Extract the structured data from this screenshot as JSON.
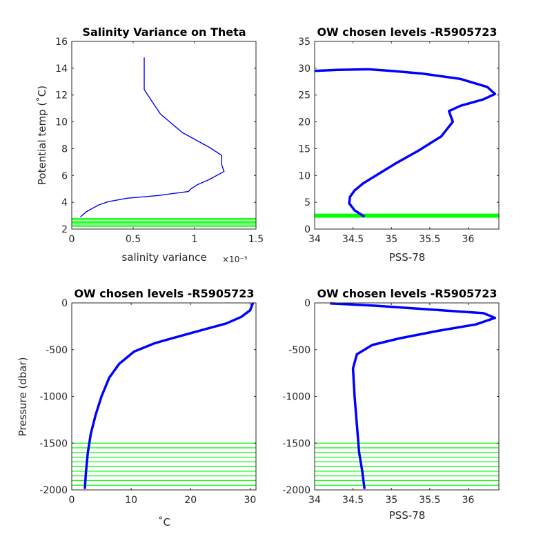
{
  "colors": {
    "profile": "#0000ff",
    "levels": "#00ff00",
    "axes": "#262626"
  },
  "chart_data": [
    {
      "type": "line",
      "title": "Salinity Variance on Theta",
      "xlabel": "salinity variance",
      "ylabel": "Potential temp (˚C)",
      "x_exponent_label": "×10⁻³",
      "xlim": [
        0,
        1.5
      ],
      "ylim": [
        2,
        16
      ],
      "xticks": [
        0,
        0.5,
        1,
        1.5
      ],
      "xtick_labels": [
        "0",
        "0.5",
        "1",
        "1.5"
      ],
      "yticks": [
        2,
        4,
        6,
        8,
        10,
        12,
        14,
        16
      ],
      "ytick_labels": [
        "2",
        "4",
        "6",
        "8",
        "10",
        "12",
        "14",
        "16"
      ],
      "series": [
        {
          "x": [
            0.59,
            0.59,
            0.72,
            0.9,
            1.12,
            1.22,
            1.22,
            1.24,
            1.12,
            1.02,
            0.97,
            0.95,
            0.7,
            0.45,
            0.3,
            0.22,
            0.18,
            0.12,
            0.07
          ],
          "y": [
            14.8,
            12.4,
            10.6,
            9.2,
            8.1,
            7.5,
            6.8,
            6.3,
            5.7,
            5.3,
            5.0,
            4.8,
            4.5,
            4.3,
            4.05,
            3.8,
            3.6,
            3.3,
            2.9
          ]
        }
      ],
      "chosen_levels": [
        2.2,
        2.3,
        2.4,
        2.5,
        2.6,
        2.7,
        2.8
      ]
    },
    {
      "type": "line",
      "title": "OW chosen levels -R5905723",
      "xlabel": "PSS-78",
      "ylabel": "",
      "xlim": [
        34,
        36.4
      ],
      "ylim": [
        0,
        35
      ],
      "xticks": [
        34,
        34.5,
        35,
        35.5,
        36
      ],
      "xtick_labels": [
        "34",
        "34.5",
        "35",
        "35.5",
        "36"
      ],
      "yticks": [
        0,
        5,
        10,
        15,
        20,
        25,
        30,
        35
      ],
      "ytick_labels": [
        "0",
        "5",
        "10",
        "15",
        "20",
        "25",
        "30",
        "35"
      ],
      "series": [
        {
          "x": [
            34.65,
            34.52,
            34.45,
            34.46,
            34.52,
            34.63,
            34.8,
            35.05,
            35.35,
            35.65,
            35.8,
            35.75,
            35.9,
            36.2,
            36.35,
            36.25,
            35.9,
            35.4,
            35.0,
            34.7,
            34.3,
            34.0
          ],
          "y": [
            2.3,
            3.5,
            4.8,
            6.0,
            7.2,
            8.5,
            10.0,
            12.2,
            14.6,
            17.3,
            20.0,
            22.0,
            23.0,
            24.2,
            25.2,
            26.5,
            28.0,
            29.0,
            29.5,
            29.8,
            29.7,
            29.5
          ]
        }
      ],
      "chosen_levels": [
        2.2,
        2.3,
        2.4,
        2.5,
        2.6,
        2.7,
        2.8
      ]
    },
    {
      "type": "line",
      "title": "OW chosen levels -R5905723",
      "xlabel": "˚C",
      "ylabel": "Pressure (dbar)",
      "xlim": [
        0,
        31
      ],
      "ylim": [
        -2000,
        0
      ],
      "xticks": [
        0,
        10,
        20,
        30
      ],
      "xtick_labels": [
        "0",
        "10",
        "20",
        "30"
      ],
      "yticks": [
        -2000,
        -1500,
        -1000,
        -500,
        0
      ],
      "ytick_labels": [
        "-2000",
        "-1500",
        "-1000",
        "-500",
        "0"
      ],
      "series": [
        {
          "x": [
            2.2,
            2.4,
            2.7,
            3.2,
            4.0,
            5.0,
            6.3,
            8.0,
            10.5,
            14.0,
            18.5,
            22.5,
            26.0,
            28.5,
            30.0,
            30.5
          ],
          "y": [
            -1990,
            -1800,
            -1600,
            -1400,
            -1200,
            -1000,
            -800,
            -650,
            -520,
            -430,
            -350,
            -280,
            -220,
            -150,
            -80,
            0
          ]
        }
      ],
      "chosen_levels": [
        -1500,
        -1550,
        -1600,
        -1650,
        -1700,
        -1750,
        -1800,
        -1850,
        -1900,
        -1950
      ]
    },
    {
      "type": "line",
      "title": "OW chosen levels -R5905723",
      "xlabel": "PSS-78",
      "ylabel": "",
      "xlim": [
        34,
        36.4
      ],
      "ylim": [
        -2000,
        0
      ],
      "xticks": [
        34,
        34.5,
        35,
        35.5,
        36
      ],
      "xtick_labels": [
        "34",
        "34.5",
        "35",
        "35.5",
        "36"
      ],
      "yticks": [
        -2000,
        -1500,
        -1000,
        -500,
        0
      ],
      "ytick_labels": [
        "-2000",
        "-1500",
        "-1000",
        "-500",
        "0"
      ],
      "series": [
        {
          "x": [
            34.65,
            34.62,
            34.58,
            34.55,
            34.52,
            34.5,
            34.55,
            34.75,
            35.1,
            35.6,
            36.1,
            36.35,
            36.2,
            35.5,
            34.8,
            34.2
          ],
          "y": [
            -1990,
            -1800,
            -1600,
            -1300,
            -1000,
            -700,
            -550,
            -450,
            -380,
            -300,
            -230,
            -160,
            -110,
            -70,
            -30,
            -5
          ]
        }
      ],
      "chosen_levels": [
        -1500,
        -1550,
        -1600,
        -1650,
        -1700,
        -1750,
        -1800,
        -1850,
        -1900,
        -1950
      ]
    }
  ]
}
